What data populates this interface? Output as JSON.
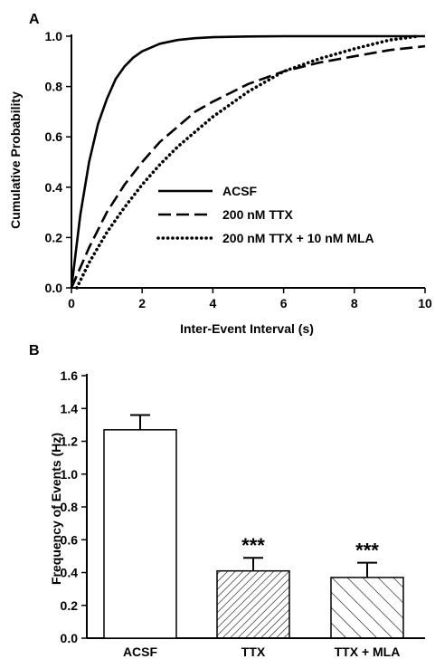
{
  "chart_data": [
    {
      "panel": "A",
      "type": "line",
      "xlabel": "Inter-Event Interval (s)",
      "ylabel": "Cumulative Probability",
      "xlim": [
        0,
        10
      ],
      "ylim": [
        0,
        1
      ],
      "xticks": [
        0,
        2,
        4,
        6,
        8,
        10
      ],
      "yticks": [
        "0.0",
        "0.2",
        "0.4",
        "0.6",
        "0.8",
        "1.0"
      ],
      "legend_position": "center-right",
      "series": [
        {
          "name": "ACSF",
          "style": "solid",
          "x": [
            0,
            0.25,
            0.5,
            0.75,
            1.0,
            1.25,
            1.5,
            1.75,
            2.0,
            2.5,
            3.0,
            3.5,
            4.0,
            5.0,
            6.0,
            8.0,
            10.0
          ],
          "y": [
            0.0,
            0.29,
            0.5,
            0.65,
            0.75,
            0.83,
            0.88,
            0.915,
            0.94,
            0.97,
            0.985,
            0.992,
            0.996,
            0.999,
            1.0,
            1.0,
            1.0
          ]
        },
        {
          "name": "200 nM TTX",
          "style": "dashed",
          "x": [
            0,
            0.5,
            1.0,
            1.5,
            2.0,
            2.5,
            3.0,
            3.5,
            4.0,
            5.0,
            6.0,
            7.0,
            8.0,
            9.0,
            10.0
          ],
          "y": [
            0.0,
            0.16,
            0.3,
            0.41,
            0.5,
            0.58,
            0.64,
            0.7,
            0.74,
            0.81,
            0.86,
            0.895,
            0.92,
            0.945,
            0.96
          ]
        },
        {
          "name": "200 nM TTX + 10 nM MLA",
          "style": "dotted",
          "x": [
            0.15,
            0.5,
            1.0,
            1.5,
            2.0,
            2.5,
            3.0,
            3.5,
            4.0,
            5.0,
            6.0,
            7.0,
            8.0,
            9.0,
            9.8
          ],
          "y": [
            0.0,
            0.1,
            0.22,
            0.32,
            0.41,
            0.49,
            0.56,
            0.62,
            0.68,
            0.78,
            0.86,
            0.91,
            0.95,
            0.985,
            1.0
          ]
        }
      ]
    },
    {
      "panel": "B",
      "type": "bar",
      "ylabel": "Frequency of Events (Hz)",
      "ylim": [
        0,
        1.6
      ],
      "yticks": [
        "0.0",
        "0.2",
        "0.4",
        "0.6",
        "0.8",
        "1.0",
        "1.2",
        "1.4",
        "1.6"
      ],
      "categories": [
        "ACSF",
        "TTX",
        "TTX + MLA"
      ],
      "values": [
        1.27,
        0.41,
        0.37
      ],
      "errors": [
        0.09,
        0.08,
        0.09
      ],
      "fills": [
        "none",
        "diagonal-dense",
        "diagonal-sparse"
      ],
      "annotations": [
        "",
        "***",
        "***"
      ]
    }
  ]
}
